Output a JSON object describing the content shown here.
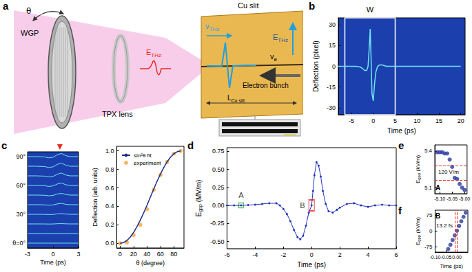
{
  "diagram": {
    "label": "a",
    "angle": "θ",
    "polarizer": "WGP",
    "lens": "TPX lens",
    "terahertz_field": {
      "main": "E",
      "sub": "THz"
    },
    "slit": "Cu slit",
    "thz_velocity": {
      "main": "v",
      "sub": "THz"
    },
    "field_vector": {
      "main": "E",
      "sub": "THz"
    },
    "electron_velocity": {
      "main": "v",
      "sub": "e"
    },
    "slit_length": {
      "main": "L",
      "sub": "Cu slit"
    },
    "electron_bunch": "Electron bunch"
  },
  "chart_data": [
    {
      "label": "b",
      "type": "line",
      "xlabel": "Time (ps)",
      "ylabel": "Deflection (pixel)",
      "x": [
        -8,
        -6,
        -4,
        -3,
        -2.5,
        -2,
        -1.5,
        -1.2,
        -0.9,
        -0.7,
        -0.5,
        -0.3,
        0,
        0.3,
        0.6,
        1,
        1.5,
        2,
        3,
        4,
        6,
        8,
        12,
        16,
        20
      ],
      "values": [
        0,
        0,
        0,
        -0.5,
        -1.5,
        -3,
        -3,
        0,
        15,
        27,
        5,
        -20,
        -25,
        -12,
        -4,
        0,
        1,
        1,
        0,
        0,
        0,
        0,
        0,
        0,
        0
      ],
      "color": "#6fe6f2",
      "xlim": [
        -8,
        21
      ],
      "xticks": [
        -5,
        0,
        5,
        10,
        15,
        20
      ],
      "ylim": [
        -35,
        35
      ],
      "yticks": [
        -30,
        -15,
        0,
        15,
        30
      ],
      "window": {
        "label": "W",
        "x": [
          -6.5,
          5
        ]
      }
    },
    {
      "label": "c",
      "type": "line",
      "xlabel": "Time (ps)",
      "tick_labels": "x",
      "x": [
        -3,
        -2,
        -1,
        -0.5,
        0,
        0.5,
        1,
        1.5,
        2,
        3
      ],
      "xlim": [
        -3,
        3
      ],
      "xticks": [
        -3,
        0,
        3
      ],
      "ylim": [
        -30,
        30
      ],
      "color": "#6fe6f2",
      "arrow": {
        "x": 0.8,
        "color": "#e8281e"
      },
      "rows": [
        {
          "name": "90°",
          "values": [
            0,
            0,
            -2,
            -8,
            -4,
            12,
            20,
            6,
            0,
            0
          ]
        },
        {
          "name": null,
          "values": [
            0,
            0,
            -1.95,
            -7.8,
            -3.9,
            11.7,
            19.5,
            5.85,
            0,
            0
          ]
        },
        {
          "name": null,
          "values": [
            0,
            0,
            -1.75,
            -7,
            -3.5,
            10.5,
            17.5,
            5.25,
            0,
            0
          ]
        },
        {
          "name": "60°",
          "values": [
            0,
            0,
            -1.5,
            -6,
            -3,
            9,
            15,
            4.5,
            0,
            0
          ]
        },
        {
          "name": null,
          "values": [
            0,
            0,
            -1.1,
            -4.4,
            -2.2,
            6.6,
            11,
            3.3,
            0,
            0
          ]
        },
        {
          "name": null,
          "values": [
            0,
            0,
            -0.8,
            -3.2,
            -1.6,
            4.8,
            8,
            2.4,
            0,
            0
          ]
        },
        {
          "name": "30°",
          "values": [
            0,
            0,
            -0.45,
            -1.8,
            -0.9,
            2.7,
            4.5,
            1.35,
            0,
            0
          ]
        },
        {
          "name": null,
          "values": [
            0,
            0,
            -0.2,
            -0.8,
            -0.4,
            1.2,
            2,
            0.6,
            0,
            0
          ]
        },
        {
          "name": null,
          "values": [
            0,
            0,
            -0.05,
            -0.2,
            -0.1,
            0.3,
            0.5,
            0.15,
            0,
            0
          ]
        },
        {
          "name": "θ=0°",
          "values": [
            0,
            0,
            0,
            0,
            0,
            0,
            0,
            0,
            0,
            0
          ]
        }
      ]
    },
    {
      "type": "line",
      "xlabel": "θ (degree)",
      "ylabel": "Deflection (arb. units)",
      "xlim": [
        -5,
        95
      ],
      "xticks": [
        0,
        20,
        40,
        60,
        80
      ],
      "ylim": [
        -0.05,
        1.05
      ],
      "yticks": [
        {
          "value": 0,
          "label": "0.0"
        },
        0.2,
        0.4,
        0.6,
        0.8,
        {
          "value": 1,
          "label": "1.0"
        }
      ],
      "legend": "upper left",
      "series": [
        {
          "name": "sin²θ fit",
          "type": "line",
          "color": "#1c2a8c",
          "x": [
            0,
            5,
            10,
            15,
            20,
            25,
            30,
            35,
            40,
            45,
            50,
            55,
            60,
            65,
            70,
            75,
            80,
            85,
            90
          ],
          "values": [
            0,
            0.008,
            0.03,
            0.067,
            0.117,
            0.179,
            0.25,
            0.329,
            0.413,
            0.5,
            0.587,
            0.671,
            0.75,
            0.821,
            0.883,
            0.933,
            0.97,
            0.992,
            1
          ]
        },
        {
          "name": "experiment",
          "type": "scatter",
          "marker": "circle",
          "color": "#f7a43a",
          "x": [
            0,
            10,
            20,
            30,
            40,
            50,
            60,
            70,
            80,
            90
          ],
          "values": [
            0,
            0.01,
            0.09,
            0.2,
            0.37,
            0.58,
            0.74,
            0.88,
            0.97,
            1
          ]
        }
      ]
    },
    {
      "label": "d",
      "type": "line",
      "xlabel": "Time (ps)",
      "ylabel": {
        "main": "E",
        "sub": "gpp",
        "rest": " (MV/m)"
      },
      "x": [
        -6,
        -5.5,
        -5,
        -4.5,
        -4,
        -3.5,
        -3,
        -2.5,
        -2.25,
        -2,
        -1.75,
        -1.5,
        -1.25,
        -1,
        -0.8,
        -0.6,
        -0.4,
        -0.2,
        0,
        0.1,
        0.2,
        0.35,
        0.5,
        0.65,
        0.8,
        1,
        1.2,
        1.5,
        1.8,
        2,
        2.5,
        3,
        3.5,
        4,
        4.5,
        5,
        5.5,
        6
      ],
      "values": [
        0,
        0,
        0,
        0.005,
        0.01,
        0.02,
        0.03,
        0.03,
        0,
        -0.05,
        -0.12,
        -0.22,
        -0.34,
        -0.44,
        -0.47,
        -0.42,
        -0.28,
        -0.1,
        0,
        0.2,
        0.42,
        0.6,
        0.55,
        0.4,
        0.2,
        0.02,
        -0.08,
        -0.1,
        -0.06,
        -0.03,
        0.02,
        0.03,
        0,
        -0.02,
        0,
        0.01,
        0,
        0
      ],
      "color": "#2233bb",
      "marker": "circle",
      "xlim": [
        -6,
        6
      ],
      "xticks": [
        -6,
        -4,
        -2,
        0,
        2,
        4,
        6
      ],
      "ylim": [
        -0.6,
        0.8
      ],
      "yticks": [
        {
          "value": -0.5,
          "label": "-0.50"
        },
        -0.25,
        {
          "value": 0,
          "label": "0.00"
        },
        0.25,
        {
          "value": 0.5,
          "label": "0.50"
        },
        0.75
      ],
      "markers": [
        {
          "label": "A",
          "x": -5,
          "y": 0,
          "color": "#3cb043"
        },
        {
          "label": "B",
          "x": 0,
          "y": 0,
          "color": "#e8281e"
        }
      ]
    },
    {
      "label": "e",
      "inset_label": "A",
      "type": "scatter",
      "marker": "circle",
      "color": "#2a3a9c",
      "ylabel": {
        "main": "E",
        "sub": "gpp",
        "rest": " (kV/m)"
      },
      "x": [
        -5.11,
        -5.1,
        -5.09,
        -5.08,
        -5.07,
        -5.06,
        -5.05,
        -5.04,
        -5.03,
        -5.02,
        -5.01,
        -5
      ],
      "values": [
        5.39,
        5.39,
        5.39,
        5.38,
        5.38,
        5.33,
        5.27,
        5.18,
        5.17,
        5.13,
        5.1,
        5.08
      ],
      "xlim": [
        -5.12,
        -4.99
      ],
      "xticks": [
        {
          "value": -5.1,
          "label": "-5.10"
        },
        -5.05,
        {
          "value": -5,
          "label": "-5.00"
        }
      ],
      "ylim": [
        5.05,
        5.45
      ],
      "yticks": [
        5.1,
        5.4
      ],
      "ref_lines": {
        "axis": "y",
        "values": [
          5.28,
          5.16
        ],
        "color": "#e8281e",
        "label": "120 V/m"
      }
    },
    {
      "label": "f",
      "inset_label": "B",
      "type": "scatter",
      "marker": "circle",
      "color": "#2a3a9c",
      "xlabel": "Time (ps)",
      "ylabel": {
        "main": "E",
        "sub": "gpp",
        "rest": " (kV/m)"
      },
      "x": [
        -0.04,
        -0.03,
        -0.02,
        -0.01,
        0,
        0.01,
        0.02,
        0.03,
        0.04
      ],
      "values": [
        -85,
        -65,
        -42,
        -20,
        2,
        25,
        47,
        68,
        88
      ],
      "xlim": [
        -0.1,
        0.05
      ],
      "xticks": [
        {
          "value": -0.1,
          "label": "-0.10"
        },
        -0.05,
        {
          "value": 0,
          "label": "0.00"
        }
      ],
      "ylim": [
        -100,
        100
      ],
      "yticks": [
        -75,
        0,
        75
      ],
      "ref_lines": {
        "axis": "x",
        "values": [
          -0.0132,
          0
        ],
        "color": "#e8281e",
        "label": "13.2 fs"
      }
    }
  ]
}
